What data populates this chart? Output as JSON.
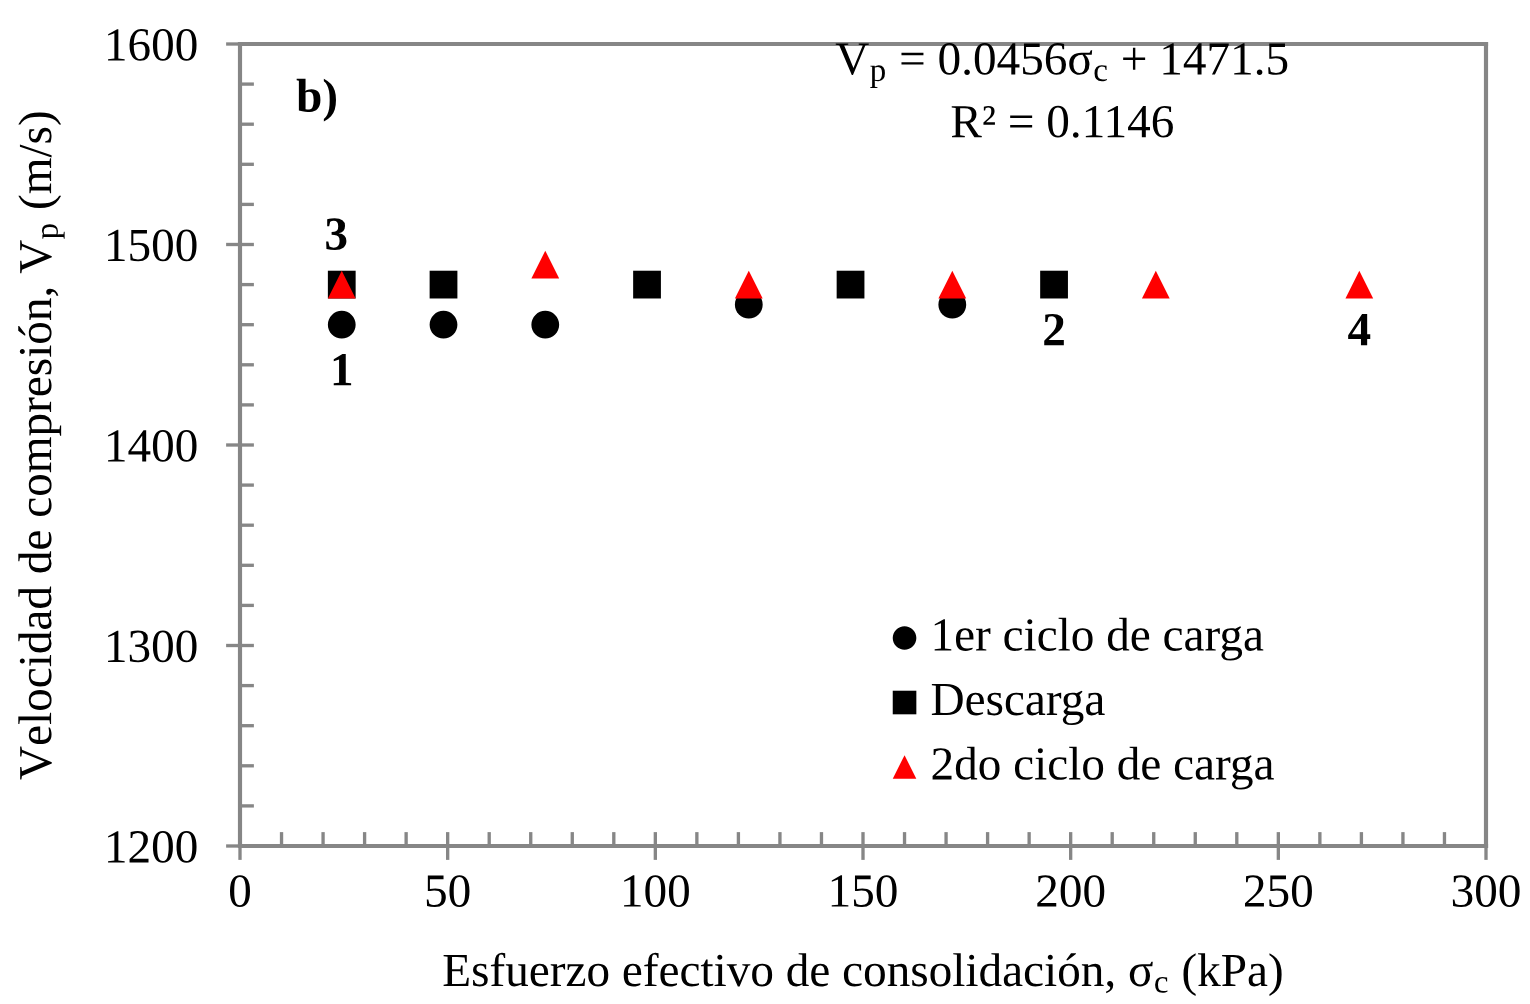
{
  "chart_data": {
    "type": "scatter",
    "title": "b)",
    "xlabel": "Esfuerzo efectivo de consolidación, σ$_{c}$ (kPa)",
    "ylabel": "Velocidad de compresión, V$_{p}$ (m/s)",
    "xlim": [
      0,
      300
    ],
    "ylim": [
      1200,
      1600
    ],
    "xticks": [
      0,
      50,
      100,
      150,
      200,
      250,
      300
    ],
    "yticks": [
      1200,
      1300,
      1400,
      1500,
      1600
    ],
    "legend": "bottom right",
    "series": [
      {
        "name": "1er ciclo de carga",
        "color": "#000000",
        "marker": "circle",
        "x": [
          24.5,
          49,
          73.5,
          122.5,
          171.5
        ],
        "values": [
          1460,
          1460,
          1460,
          1470,
          1470
        ]
      },
      {
        "name": "Descarga",
        "color": "#000000",
        "marker": "square",
        "x": [
          24.5,
          49,
          98,
          147,
          196
        ],
        "values": [
          1480,
          1480,
          1480,
          1480,
          1480
        ]
      },
      {
        "name": "2do ciclo de carga",
        "color": "#ff0000",
        "marker": "triangle",
        "x": [
          24.5,
          73.5,
          122.5,
          171.5,
          220.5,
          269.5
        ],
        "values": [
          1480,
          1490,
          1480,
          1480,
          1480,
          1480
        ]
      }
    ],
    "annotations": [
      "V$_{p}$ = 0.0456σ$_{c}$ + 1471.5",
      "R² = 0.1146",
      {
        "text": "1",
        "x": 24.5,
        "y": 1460
      },
      {
        "text": "2",
        "x": 196,
        "y": 1480
      },
      {
        "text": "3",
        "x": 24.5,
        "y": 1480
      },
      {
        "text": "4",
        "x": 269.5,
        "y": 1480
      }
    ]
  }
}
